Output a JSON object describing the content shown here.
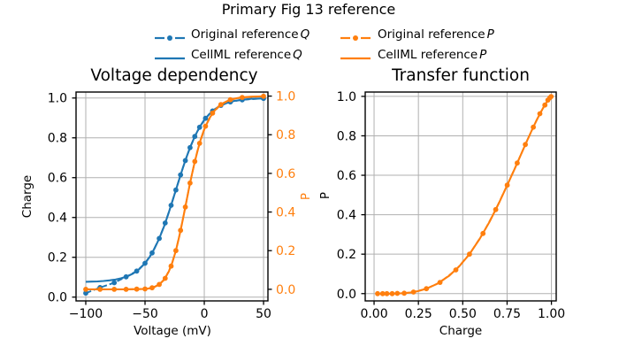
{
  "figure": {
    "suptitle": "Primary Fig 13 reference",
    "background": "#ffffff",
    "colors": {
      "blue": "#1f77b4",
      "orange": "#ff7f0e",
      "grid": "#b0b0b0",
      "spine": "#000000",
      "text": "#000000"
    }
  },
  "legend": {
    "items": [
      {
        "label": "Original reference",
        "math": "Q",
        "color": "#1f77b4",
        "style": "dashed-marker"
      },
      {
        "label": "CellML reference",
        "math": "Q",
        "color": "#1f77b4",
        "style": "solid"
      },
      {
        "label": "Original reference",
        "math": "P",
        "color": "#ff7f0e",
        "style": "dashed-marker"
      },
      {
        "label": "CellML reference",
        "math": "P",
        "color": "#ff7f0e",
        "style": "solid"
      }
    ]
  },
  "chart_data": [
    {
      "type": "line",
      "title": "Voltage dependency",
      "xlabel": "Voltage (mV)",
      "ylabel_left": "Charge",
      "ylabel_right": "P",
      "xlim": [
        -108.2,
        53.7
      ],
      "ylim_left": [
        -0.019,
        1.03
      ],
      "ylim_right": [
        -0.06,
        1.021
      ],
      "grid": true,
      "xticks": {
        "values": [
          -100,
          -50,
          0,
          50
        ],
        "labels": [
          "−100",
          "−50",
          "0",
          "50"
        ]
      },
      "yticks_left": {
        "values": [
          0.0,
          0.2,
          0.4,
          0.6,
          0.8,
          1.0
        ],
        "labels": [
          "0.0",
          "0.2",
          "0.4",
          "0.6",
          "0.8",
          "1.0"
        ]
      },
      "yticks_right": {
        "values": [
          0.0,
          0.2,
          0.4,
          0.6,
          0.8,
          1.0
        ],
        "labels": [
          "0.0",
          "0.2",
          "0.4",
          "0.6",
          "0.8",
          "1.0"
        ],
        "color": "#ff7f0e"
      },
      "series": [
        {
          "name": "CellML reference Q",
          "color": "#1f77b4",
          "style": "solid",
          "markers": false,
          "axis": "left",
          "points": [
            [
              -100,
              0.077
            ],
            [
              -95,
              0.078
            ],
            [
              -90,
              0.079
            ],
            [
              -85,
              0.081
            ],
            [
              -80,
              0.084
            ],
            [
              -75,
              0.088
            ],
            [
              -70,
              0.095
            ],
            [
              -65,
              0.104
            ],
            [
              -60,
              0.119
            ],
            [
              -55,
              0.14
            ],
            [
              -50,
              0.17
            ],
            [
              -46,
              0.203
            ],
            [
              -42,
              0.244
            ],
            [
              -38,
              0.295
            ],
            [
              -34,
              0.355
            ],
            [
              -30,
              0.424
            ],
            [
              -27,
              0.48
            ],
            [
              -24,
              0.538
            ],
            [
              -21,
              0.595
            ],
            [
              -18,
              0.651
            ],
            [
              -15,
              0.703
            ],
            [
              -12,
              0.751
            ],
            [
              -9,
              0.794
            ],
            [
              -6,
              0.831
            ],
            [
              -3,
              0.863
            ],
            [
              0,
              0.89
            ],
            [
              4,
              0.918
            ],
            [
              8,
              0.94
            ],
            [
              12,
              0.956
            ],
            [
              16,
              0.968
            ],
            [
              20,
              0.977
            ],
            [
              25,
              0.985
            ],
            [
              30,
              0.99
            ],
            [
              35,
              0.993
            ],
            [
              40,
              0.996
            ],
            [
              45,
              0.997
            ],
            [
              50,
              0.998
            ]
          ]
        },
        {
          "name": "Original reference Q",
          "color": "#1f77b4",
          "style": "dashed",
          "markers": true,
          "axis": "left",
          "points": [
            [
              -100,
              0.02
            ],
            [
              -88,
              0.048
            ],
            [
              -76,
              0.072
            ],
            [
              -66,
              0.102
            ],
            [
              -57,
              0.131
            ],
            [
              -50,
              0.17
            ],
            [
              -44,
              0.222
            ],
            [
              -38,
              0.295
            ],
            [
              -33,
              0.372
            ],
            [
              -28,
              0.461
            ],
            [
              -24,
              0.538
            ],
            [
              -20,
              0.614
            ],
            [
              -16,
              0.686
            ],
            [
              -12,
              0.751
            ],
            [
              -8,
              0.807
            ],
            [
              -4,
              0.853
            ],
            [
              1,
              0.898
            ],
            [
              7,
              0.935
            ],
            [
              14,
              0.963
            ],
            [
              22,
              0.98
            ],
            [
              32,
              0.991
            ],
            [
              50,
              0.998
            ]
          ]
        },
        {
          "name": "CellML reference P",
          "color": "#ff7f0e",
          "style": "solid",
          "markers": false,
          "axis": "right",
          "points": [
            [
              -100,
              0.0
            ],
            [
              -95,
              0.0
            ],
            [
              -90,
              0.0
            ],
            [
              -85,
              0.0
            ],
            [
              -80,
              0.0
            ],
            [
              -75,
              0.0
            ],
            [
              -70,
              0.0
            ],
            [
              -65,
              0.0001
            ],
            [
              -60,
              0.0003
            ],
            [
              -55,
              0.001
            ],
            [
              -50,
              0.002
            ],
            [
              -46,
              0.005
            ],
            [
              -42,
              0.012
            ],
            [
              -38,
              0.025
            ],
            [
              -34,
              0.049
            ],
            [
              -30,
              0.091
            ],
            [
              -27,
              0.138
            ],
            [
              -24,
              0.2
            ],
            [
              -21,
              0.277
            ],
            [
              -18,
              0.364
            ],
            [
              -15,
              0.457
            ],
            [
              -12,
              0.55
            ],
            [
              -9,
              0.635
            ],
            [
              -6,
              0.711
            ],
            [
              -3,
              0.776
            ],
            [
              0,
              0.829
            ],
            [
              4,
              0.882
            ],
            [
              8,
              0.92
            ],
            [
              12,
              0.946
            ],
            [
              16,
              0.964
            ],
            [
              20,
              0.976
            ],
            [
              25,
              0.986
            ],
            [
              30,
              0.992
            ],
            [
              35,
              0.995
            ],
            [
              40,
              0.997
            ],
            [
              45,
              0.998
            ],
            [
              50,
              0.999
            ]
          ]
        },
        {
          "name": "Original reference P",
          "color": "#ff7f0e",
          "style": "dashed",
          "markers": true,
          "axis": "right",
          "points": [
            [
              -100,
              0.0
            ],
            [
              -88,
              0.0
            ],
            [
              -76,
              0.0
            ],
            [
              -66,
              0.0
            ],
            [
              -57,
              0.001
            ],
            [
              -50,
              0.002
            ],
            [
              -44,
              0.008
            ],
            [
              -38,
              0.025
            ],
            [
              -33,
              0.057
            ],
            [
              -28,
              0.12
            ],
            [
              -24,
              0.2
            ],
            [
              -20,
              0.305
            ],
            [
              -16,
              0.426
            ],
            [
              -12,
              0.55
            ],
            [
              -8,
              0.662
            ],
            [
              -4,
              0.756
            ],
            [
              1,
              0.844
            ],
            [
              7,
              0.912
            ],
            [
              14,
              0.956
            ],
            [
              22,
              0.981
            ],
            [
              32,
              0.993
            ],
            [
              50,
              0.999
            ]
          ]
        }
      ]
    },
    {
      "type": "line",
      "title": "Transfer function",
      "xlabel": "Charge",
      "ylabel_left": "P",
      "xlim": [
        -0.05,
        1.027
      ],
      "ylim_left": [
        -0.037,
        1.022
      ],
      "grid": true,
      "xticks": {
        "values": [
          0.0,
          0.25,
          0.5,
          0.75,
          1.0
        ],
        "labels": [
          "0.00",
          "0.25",
          "0.50",
          "0.75",
          "1.00"
        ]
      },
      "yticks_left": {
        "values": [
          0.0,
          0.2,
          0.4,
          0.6,
          0.8,
          1.0
        ],
        "labels": [
          "0.0",
          "0.2",
          "0.4",
          "0.6",
          "0.8",
          "1.0"
        ]
      },
      "series": [
        {
          "name": "CellML reference P",
          "color": "#ff7f0e",
          "style": "solid",
          "markers": false,
          "axis": "left",
          "points": [
            [
              0.077,
              0.0
            ],
            [
              0.078,
              0.0
            ],
            [
              0.079,
              0.0
            ],
            [
              0.081,
              0.0
            ],
            [
              0.084,
              0.0
            ],
            [
              0.088,
              0.0
            ],
            [
              0.095,
              0.0
            ],
            [
              0.104,
              0.0001
            ],
            [
              0.119,
              0.0003
            ],
            [
              0.14,
              0.001
            ],
            [
              0.17,
              0.002
            ],
            [
              0.203,
              0.005
            ],
            [
              0.244,
              0.012
            ],
            [
              0.295,
              0.025
            ],
            [
              0.355,
              0.049
            ],
            [
              0.424,
              0.091
            ],
            [
              0.48,
              0.138
            ],
            [
              0.538,
              0.2
            ],
            [
              0.595,
              0.277
            ],
            [
              0.651,
              0.364
            ],
            [
              0.703,
              0.457
            ],
            [
              0.751,
              0.55
            ],
            [
              0.794,
              0.635
            ],
            [
              0.831,
              0.711
            ],
            [
              0.863,
              0.776
            ],
            [
              0.89,
              0.829
            ],
            [
              0.918,
              0.882
            ],
            [
              0.94,
              0.92
            ],
            [
              0.956,
              0.946
            ],
            [
              0.968,
              0.964
            ],
            [
              0.977,
              0.976
            ],
            [
              0.985,
              0.986
            ],
            [
              0.99,
              0.992
            ],
            [
              0.993,
              0.995
            ],
            [
              0.996,
              0.997
            ],
            [
              0.997,
              0.998
            ],
            [
              0.998,
              0.999
            ]
          ]
        },
        {
          "name": "Original reference P",
          "color": "#ff7f0e",
          "style": "dashed",
          "markers": true,
          "axis": "left",
          "points": [
            [
              0.02,
              0.0
            ],
            [
              0.048,
              0.0
            ],
            [
              0.072,
              0.0
            ],
            [
              0.102,
              0.0
            ],
            [
              0.131,
              0.001
            ],
            [
              0.17,
              0.002
            ],
            [
              0.222,
              0.008
            ],
            [
              0.295,
              0.025
            ],
            [
              0.372,
              0.057
            ],
            [
              0.461,
              0.12
            ],
            [
              0.538,
              0.2
            ],
            [
              0.614,
              0.305
            ],
            [
              0.686,
              0.426
            ],
            [
              0.751,
              0.55
            ],
            [
              0.807,
              0.662
            ],
            [
              0.853,
              0.756
            ],
            [
              0.898,
              0.844
            ],
            [
              0.935,
              0.912
            ],
            [
              0.963,
              0.956
            ],
            [
              0.98,
              0.981
            ],
            [
              0.991,
              0.993
            ],
            [
              0.998,
              0.999
            ]
          ]
        }
      ]
    }
  ]
}
